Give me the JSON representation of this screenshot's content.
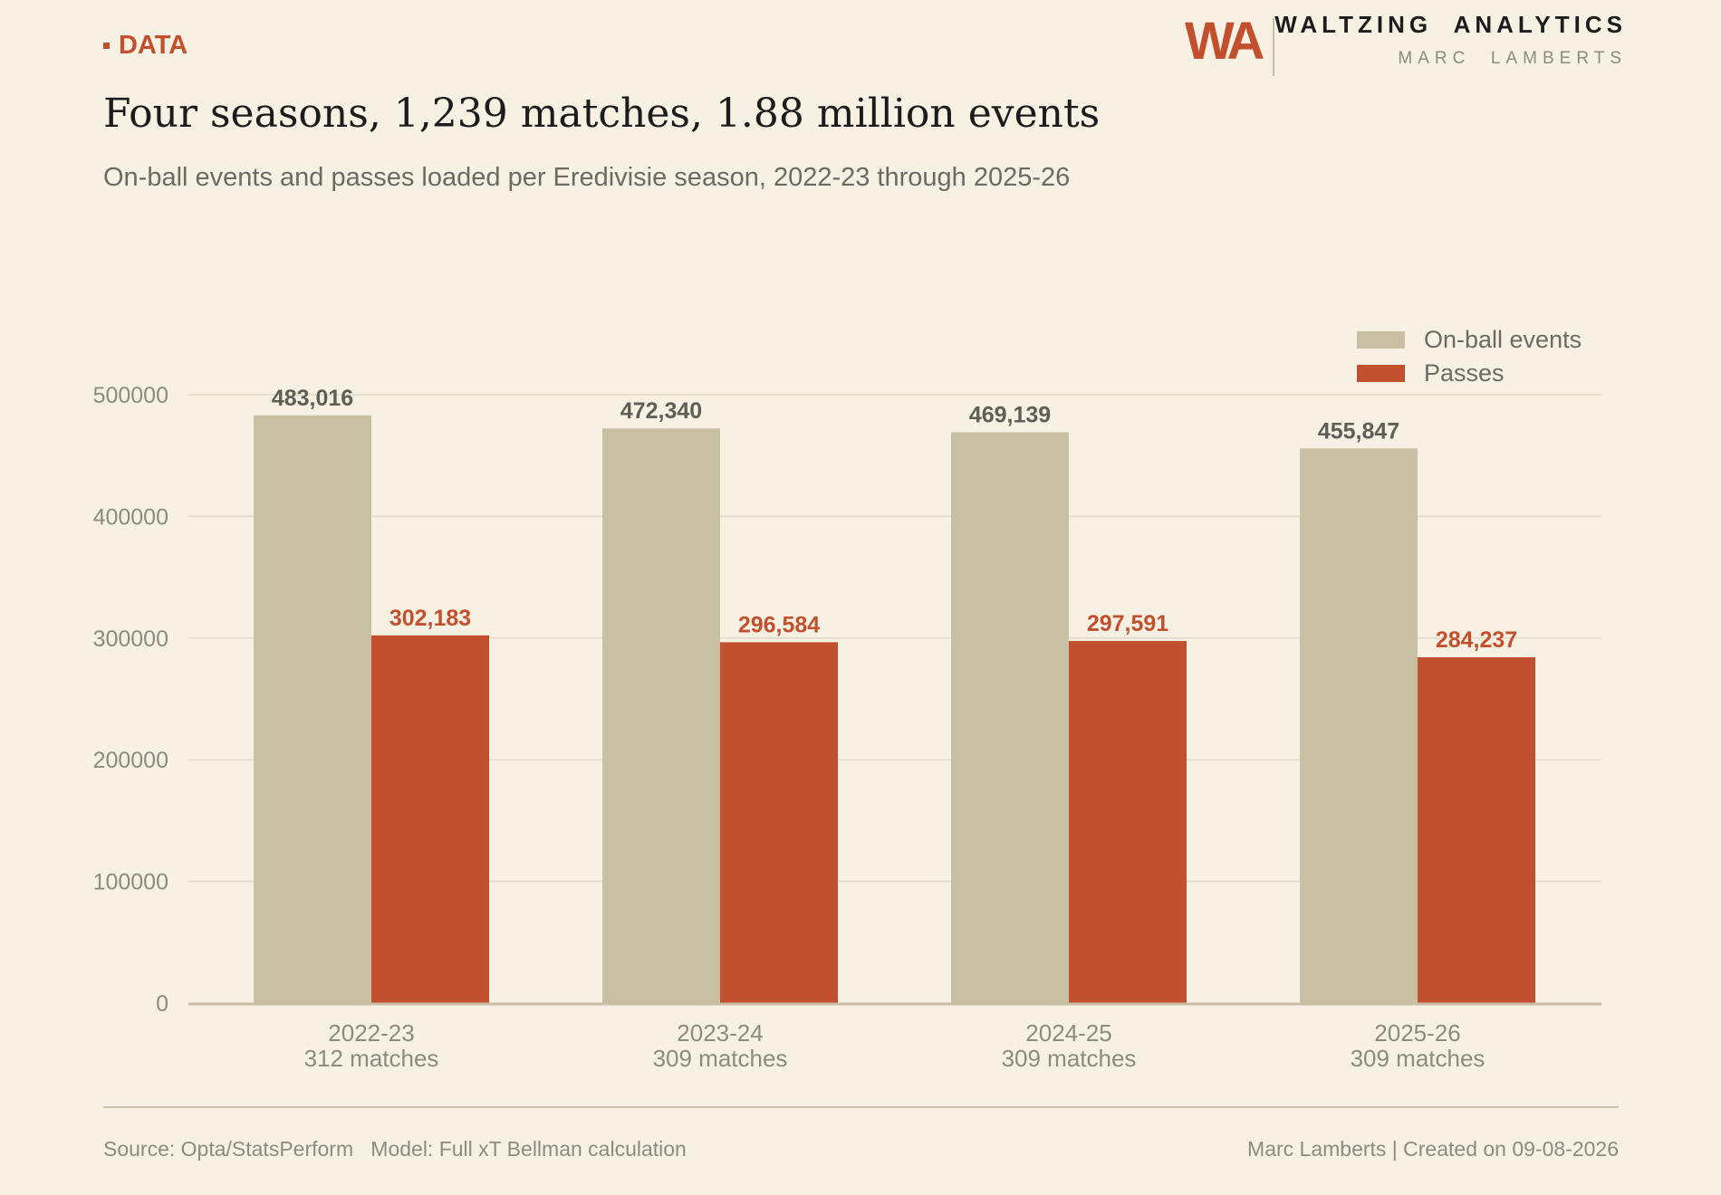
{
  "header": {
    "tag": "DATA",
    "logo_mark": "WA",
    "brand_title": "WALTZING  ANALYTICS",
    "brand_subtitle": "MARC  LAMBERTS"
  },
  "title": "Four seasons, 1,239 matches, 1.88 million events",
  "subtitle": "On-ball events and passes loaded per Eredivisie season, 2022-23 through 2025-26",
  "footer": {
    "left": "Source: Opta/StatsPerform   Model: Full xT Bellman calculation",
    "right": "Marc Lamberts | Created on 09-08-2026"
  },
  "colors": {
    "on_ball": "#c9bfa3",
    "passes": "#c2502e",
    "on_ball_label": "#5f5e55",
    "passes_label": "#c2502e",
    "grid": "#e2dac8",
    "axis_text": "#8e8a7f"
  },
  "chart_data": {
    "type": "bar",
    "categories": [
      "2022-23",
      "2023-24",
      "2024-25",
      "2025-26"
    ],
    "category_sublabels": [
      "312 matches",
      "309 matches",
      "309 matches",
      "309 matches"
    ],
    "series": [
      {
        "name": "On-ball events",
        "values": [
          483016,
          472340,
          469139,
          455847
        ],
        "labels": [
          "483,016",
          "472,340",
          "469,139",
          "455,847"
        ]
      },
      {
        "name": "Passes",
        "values": [
          302183,
          296584,
          297591,
          284237
        ],
        "labels": [
          "302,183",
          "296,584",
          "297,591",
          "284,237"
        ]
      }
    ],
    "yticks": [
      0,
      100000,
      200000,
      300000,
      400000,
      500000
    ],
    "ytick_labels": [
      "0",
      "100000",
      "200000",
      "300000",
      "400000",
      "500000"
    ],
    "ylim": [
      0,
      500000
    ],
    "grid": true,
    "legend_position": "top-right",
    "xlabel": "",
    "ylabel": ""
  }
}
